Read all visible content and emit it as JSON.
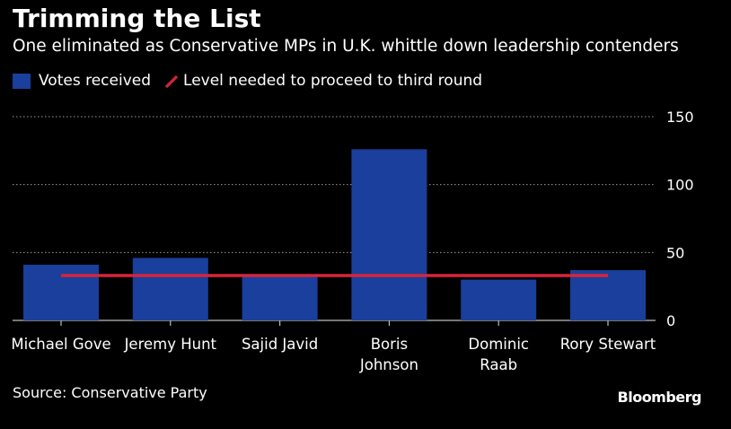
{
  "chart_data": {
    "type": "bar",
    "title": "Trimming the List",
    "subtitle": "One eliminated as Conservative MPs in U.K. whittle down leadership contenders",
    "categories": [
      "Michael Gove",
      "Jeremy Hunt",
      "Sajid Javid",
      "Boris Johnson",
      "Dominic Raab",
      "Rory Stewart"
    ],
    "category_lines": [
      [
        "Michael Gove"
      ],
      [
        "Jeremy Hunt"
      ],
      [
        "Sajid Javid"
      ],
      [
        "Boris",
        "Johnson"
      ],
      [
        "Dominic",
        "Raab"
      ],
      [
        "Rory Stewart"
      ]
    ],
    "series": [
      {
        "name": "Votes received",
        "values": [
          41,
          46,
          33,
          126,
          30,
          37
        ]
      }
    ],
    "threshold": {
      "name": "Level needed to proceed to third round",
      "value": 33
    },
    "ylim": [
      0,
      150
    ],
    "yticks": [
      0,
      50,
      100,
      150
    ],
    "ytick_labels": [
      "0",
      "50",
      "100",
      "150"
    ],
    "xlabel": "",
    "ylabel": "",
    "grid": true,
    "colors": {
      "bar": "#1a3f9c",
      "threshold": "#d6243a",
      "grid": "#9a9a9a",
      "background": "#000000"
    }
  },
  "legend": {
    "bar_label": "Votes received",
    "line_label": "Level needed to proceed to third round"
  },
  "footer": {
    "source": "Source: Conservative Party",
    "brand": "Bloomberg"
  }
}
